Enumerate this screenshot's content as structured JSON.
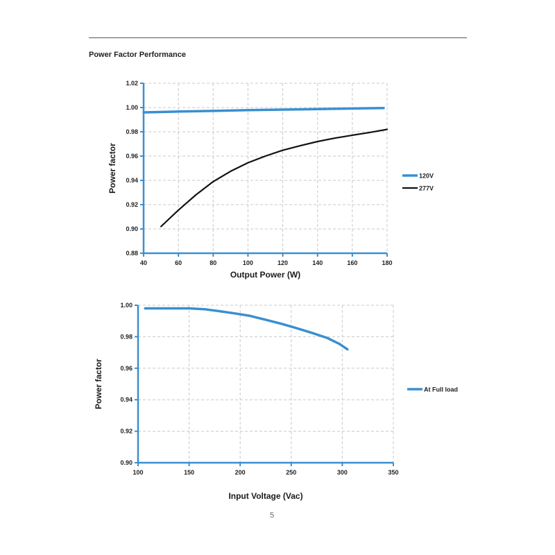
{
  "page": {
    "section_title": "Power Factor Performance",
    "page_number": "5"
  },
  "chart_data": [
    {
      "type": "line",
      "title": "",
      "xlabel": "Output Power (W)",
      "ylabel": "Power factor",
      "xlim": [
        40,
        180
      ],
      "ylim": [
        0.88,
        1.02
      ],
      "xticks": [
        "40",
        "60",
        "80",
        "100",
        "120",
        "140",
        "160",
        "180"
      ],
      "yticks": [
        "0.88",
        "0.90",
        "0.92",
        "0.94",
        "0.96",
        "0.98",
        "1.00",
        "1.02"
      ],
      "grid": true,
      "legend_position": "right",
      "series": [
        {
          "name": "120V",
          "color": "#3a8fd0",
          "x": [
            40,
            60,
            80,
            100,
            120,
            140,
            160,
            178
          ],
          "y": [
            0.996,
            0.9967,
            0.9972,
            0.9978,
            0.9983,
            0.9987,
            0.9992,
            0.9996
          ]
        },
        {
          "name": "277V",
          "color": "#111111",
          "x": [
            50,
            60,
            70,
            80,
            90,
            100,
            110,
            120,
            130,
            140,
            150,
            160,
            170,
            180
          ],
          "y": [
            0.902,
            0.9155,
            0.928,
            0.939,
            0.9475,
            0.9545,
            0.96,
            0.9648,
            0.9685,
            0.972,
            0.9748,
            0.9772,
            0.9795,
            0.982
          ]
        }
      ]
    },
    {
      "type": "line",
      "title": "",
      "xlabel": "Input Voltage (Vac)",
      "ylabel": "Power factor",
      "xlim": [
        100,
        350
      ],
      "ylim": [
        0.9,
        1.0
      ],
      "xticks": [
        "100",
        "150",
        "200",
        "250",
        "300",
        "350"
      ],
      "yticks": [
        "0.90",
        "0.92",
        "0.94",
        "0.96",
        "0.98",
        "1.00"
      ],
      "grid": true,
      "legend_position": "right",
      "series": [
        {
          "name": "At Full load",
          "color": "#3a8fd0",
          "x": [
            107,
            120,
            150,
            165,
            180,
            195,
            210,
            225,
            240,
            255,
            270,
            285,
            297,
            305
          ],
          "y": [
            0.998,
            0.998,
            0.998,
            0.9975,
            0.9962,
            0.9948,
            0.9932,
            0.9908,
            0.9883,
            0.9855,
            0.9825,
            0.9793,
            0.9755,
            0.972
          ]
        }
      ]
    }
  ]
}
